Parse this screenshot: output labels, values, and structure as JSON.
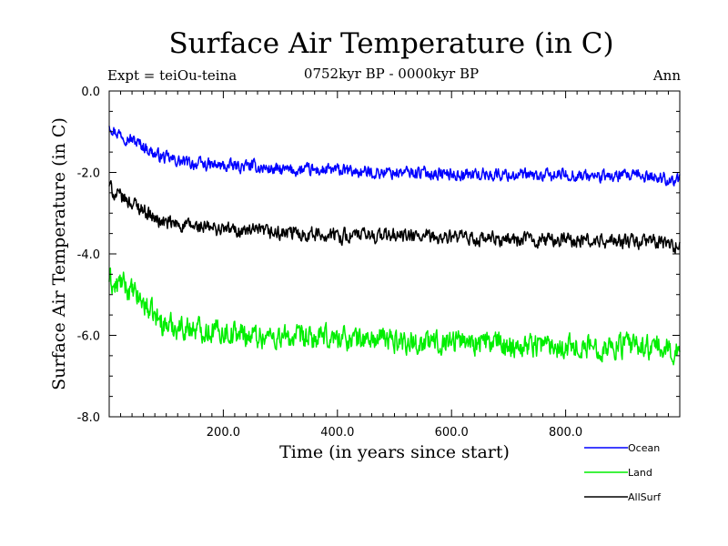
{
  "header": {
    "title": "Surface Air Temperature (in C)",
    "subtitle": "0752kyr BP - 0000kyr BP",
    "experiment": "Expt = teiOu-teina",
    "period": "Ann"
  },
  "chart_data": {
    "type": "line",
    "title": "Surface Air Temperature (in C)",
    "xlabel": "Time (in years since start)",
    "ylabel": "Surface Air Temperature (in C)",
    "xlim": [
      0,
      1000
    ],
    "ylim": [
      -8,
      0
    ],
    "xticks": [
      200,
      400,
      600,
      800
    ],
    "xtick_labels": [
      "200.0",
      "400.0",
      "600.0",
      "800.0"
    ],
    "yticks": [
      0,
      -2,
      -4,
      -6,
      -8
    ],
    "ytick_labels": [
      "0.0",
      "-2.0",
      "-4.0",
      "-6.0",
      "-8.0"
    ],
    "grid": false,
    "legend_position": "bottom-right, outside plot",
    "series": [
      {
        "name": "Ocean",
        "color": "#0000ff",
        "x": [
          0,
          10,
          20,
          40,
          60,
          80,
          100,
          130,
          160,
          200,
          250,
          300,
          350,
          400,
          450,
          500,
          550,
          600,
          650,
          700,
          750,
          800,
          850,
          900,
          950,
          1000
        ],
        "values": [
          -0.8,
          -1.0,
          -1.05,
          -1.2,
          -1.35,
          -1.55,
          -1.65,
          -1.75,
          -1.8,
          -1.85,
          -1.85,
          -1.95,
          -1.95,
          -1.95,
          -2.0,
          -2.0,
          -2.0,
          -2.05,
          -2.05,
          -2.05,
          -2.1,
          -2.05,
          -2.1,
          -2.1,
          -2.1,
          -2.2
        ],
        "noise": 0.13
      },
      {
        "name": "Land",
        "color": "#00ee00",
        "x": [
          0,
          10,
          20,
          40,
          60,
          80,
          100,
          130,
          160,
          200,
          250,
          300,
          350,
          400,
          450,
          500,
          550,
          600,
          650,
          700,
          750,
          800,
          850,
          900,
          950,
          1000
        ],
        "values": [
          -4.6,
          -4.85,
          -4.7,
          -4.95,
          -5.2,
          -5.55,
          -5.75,
          -5.8,
          -5.85,
          -5.9,
          -6.0,
          -6.05,
          -6.1,
          -6.05,
          -6.1,
          -6.1,
          -6.2,
          -6.1,
          -6.15,
          -6.25,
          -6.2,
          -6.25,
          -6.3,
          -6.25,
          -6.3,
          -6.4
        ],
        "noise": 0.25
      },
      {
        "name": "AllSurf",
        "color": "#000000",
        "x": [
          0,
          10,
          20,
          40,
          60,
          80,
          100,
          130,
          160,
          200,
          250,
          300,
          350,
          400,
          450,
          500,
          550,
          600,
          650,
          700,
          750,
          800,
          850,
          900,
          950,
          1000
        ],
        "values": [
          -2.3,
          -2.55,
          -2.6,
          -2.75,
          -2.9,
          -3.15,
          -3.25,
          -3.3,
          -3.35,
          -3.4,
          -3.45,
          -3.5,
          -3.5,
          -3.55,
          -3.55,
          -3.55,
          -3.6,
          -3.6,
          -3.65,
          -3.65,
          -3.65,
          -3.65,
          -3.7,
          -3.7,
          -3.7,
          -3.8
        ],
        "noise": 0.15
      }
    ]
  }
}
